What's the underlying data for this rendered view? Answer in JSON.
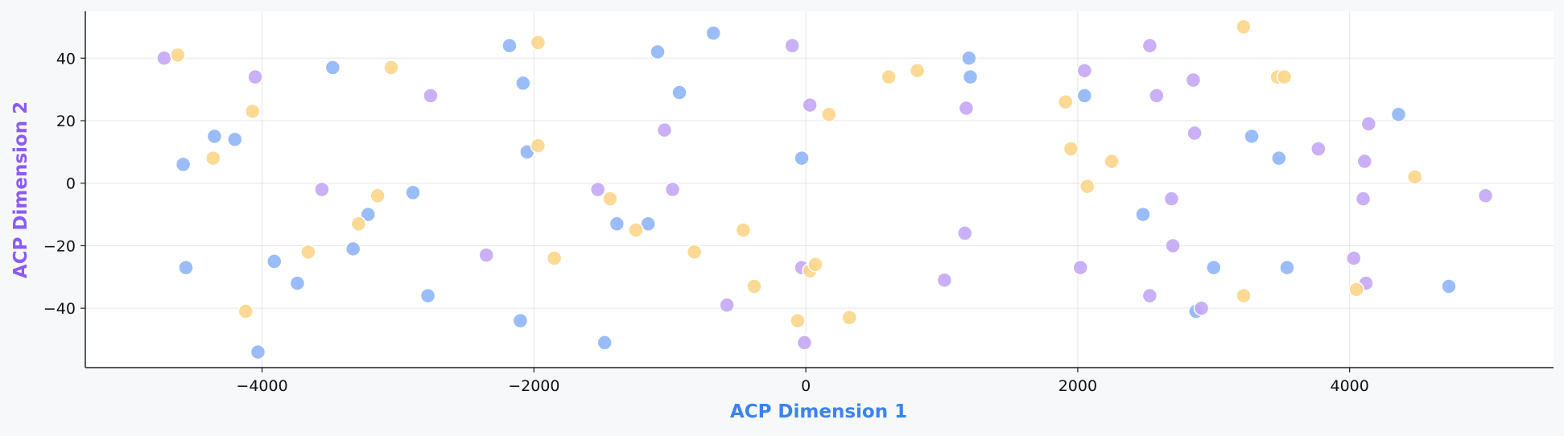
{
  "chart_data": {
    "type": "scatter",
    "title": "",
    "xlabel": "ACP Dimension 1",
    "ylabel": "ACP Dimension 2",
    "xlim": [
      -5300,
      5500
    ],
    "ylim": [
      -59,
      55
    ],
    "xticks": [
      -4000,
      -2000,
      0,
      2000,
      4000
    ],
    "yticks": [
      -40,
      -20,
      0,
      20,
      40
    ],
    "xtick_labels": [
      "−4000",
      "−2000",
      "0",
      "2000",
      "4000"
    ],
    "ytick_labels": [
      "−40",
      "−20",
      "0",
      "20",
      "40"
    ],
    "grid": true,
    "legend": "none",
    "colors": {
      "xlabel": "#3b82f6",
      "ylabel": "#8b5cf6",
      "plot_bg": "#ffffff",
      "page_bg": "#f7f8fa",
      "grid": "#e6e6e6"
    },
    "series": [
      {
        "color": "#8fb6f8",
        "points": [
          [
            -4580,
            6
          ],
          [
            -4350,
            15
          ],
          [
            -4200,
            14
          ],
          [
            -4560,
            -27
          ],
          [
            -3910,
            -25
          ],
          [
            -3740,
            -32
          ],
          [
            -4030,
            -54
          ],
          [
            -3480,
            37
          ],
          [
            -3330,
            -21
          ],
          [
            -3220,
            -10
          ],
          [
            -2890,
            -3
          ],
          [
            -2780,
            -36
          ],
          [
            -2180,
            44
          ],
          [
            -2080,
            32
          ],
          [
            -2050,
            10
          ],
          [
            -2100,
            -44
          ],
          [
            -1480,
            -51
          ],
          [
            -1390,
            -13
          ],
          [
            -1160,
            -13
          ],
          [
            -1090,
            42
          ],
          [
            -930,
            29
          ],
          [
            -680,
            48
          ],
          [
            -30,
            8
          ],
          [
            1200,
            40
          ],
          [
            1210,
            34
          ],
          [
            2050,
            28
          ],
          [
            2480,
            -10
          ],
          [
            2870,
            -41
          ],
          [
            3000,
            -27
          ],
          [
            3280,
            15
          ],
          [
            3480,
            8
          ],
          [
            3540,
            -27
          ],
          [
            4360,
            22
          ],
          [
            4730,
            -33
          ]
        ]
      },
      {
        "color": "#c4a7f5",
        "points": [
          [
            -4720,
            40
          ],
          [
            -4050,
            34
          ],
          [
            -3560,
            -2
          ],
          [
            -2760,
            28
          ],
          [
            -2350,
            -23
          ],
          [
            -1530,
            -2
          ],
          [
            -1040,
            17
          ],
          [
            -980,
            -2
          ],
          [
            -580,
            -39
          ],
          [
            -100,
            44
          ],
          [
            30,
            25
          ],
          [
            -30,
            -27
          ],
          [
            -10,
            -51
          ],
          [
            1020,
            -31
          ],
          [
            1180,
            24
          ],
          [
            1170,
            -16
          ],
          [
            2050,
            36
          ],
          [
            2020,
            -27
          ],
          [
            2530,
            44
          ],
          [
            2580,
            28
          ],
          [
            2690,
            -5
          ],
          [
            2700,
            -20
          ],
          [
            2530,
            -36
          ],
          [
            2850,
            33
          ],
          [
            2860,
            16
          ],
          [
            2910,
            -40
          ],
          [
            3770,
            11
          ],
          [
            4030,
            -24
          ],
          [
            4100,
            -5
          ],
          [
            4110,
            7
          ],
          [
            4140,
            19
          ],
          [
            4120,
            -32
          ],
          [
            5000,
            -4
          ]
        ]
      },
      {
        "color": "#fcd58a",
        "points": [
          [
            -4620,
            41
          ],
          [
            -4360,
            8
          ],
          [
            -4120,
            -41
          ],
          [
            -4070,
            23
          ],
          [
            -3660,
            -22
          ],
          [
            -3290,
            -13
          ],
          [
            -3150,
            -4
          ],
          [
            -3050,
            37
          ],
          [
            -1970,
            45
          ],
          [
            -1970,
            12
          ],
          [
            -1850,
            -24
          ],
          [
            -1440,
            -5
          ],
          [
            -1250,
            -15
          ],
          [
            -820,
            -22
          ],
          [
            -460,
            -15
          ],
          [
            -380,
            -33
          ],
          [
            -60,
            -44
          ],
          [
            30,
            -28
          ],
          [
            70,
            -26
          ],
          [
            170,
            22
          ],
          [
            320,
            -43
          ],
          [
            610,
            34
          ],
          [
            820,
            36
          ],
          [
            1910,
            26
          ],
          [
            1950,
            11
          ],
          [
            2070,
            -1
          ],
          [
            2250,
            7
          ],
          [
            3220,
            50
          ],
          [
            3220,
            -36
          ],
          [
            3470,
            34
          ],
          [
            3520,
            34
          ],
          [
            4050,
            -34
          ],
          [
            4480,
            2
          ]
        ]
      }
    ]
  }
}
